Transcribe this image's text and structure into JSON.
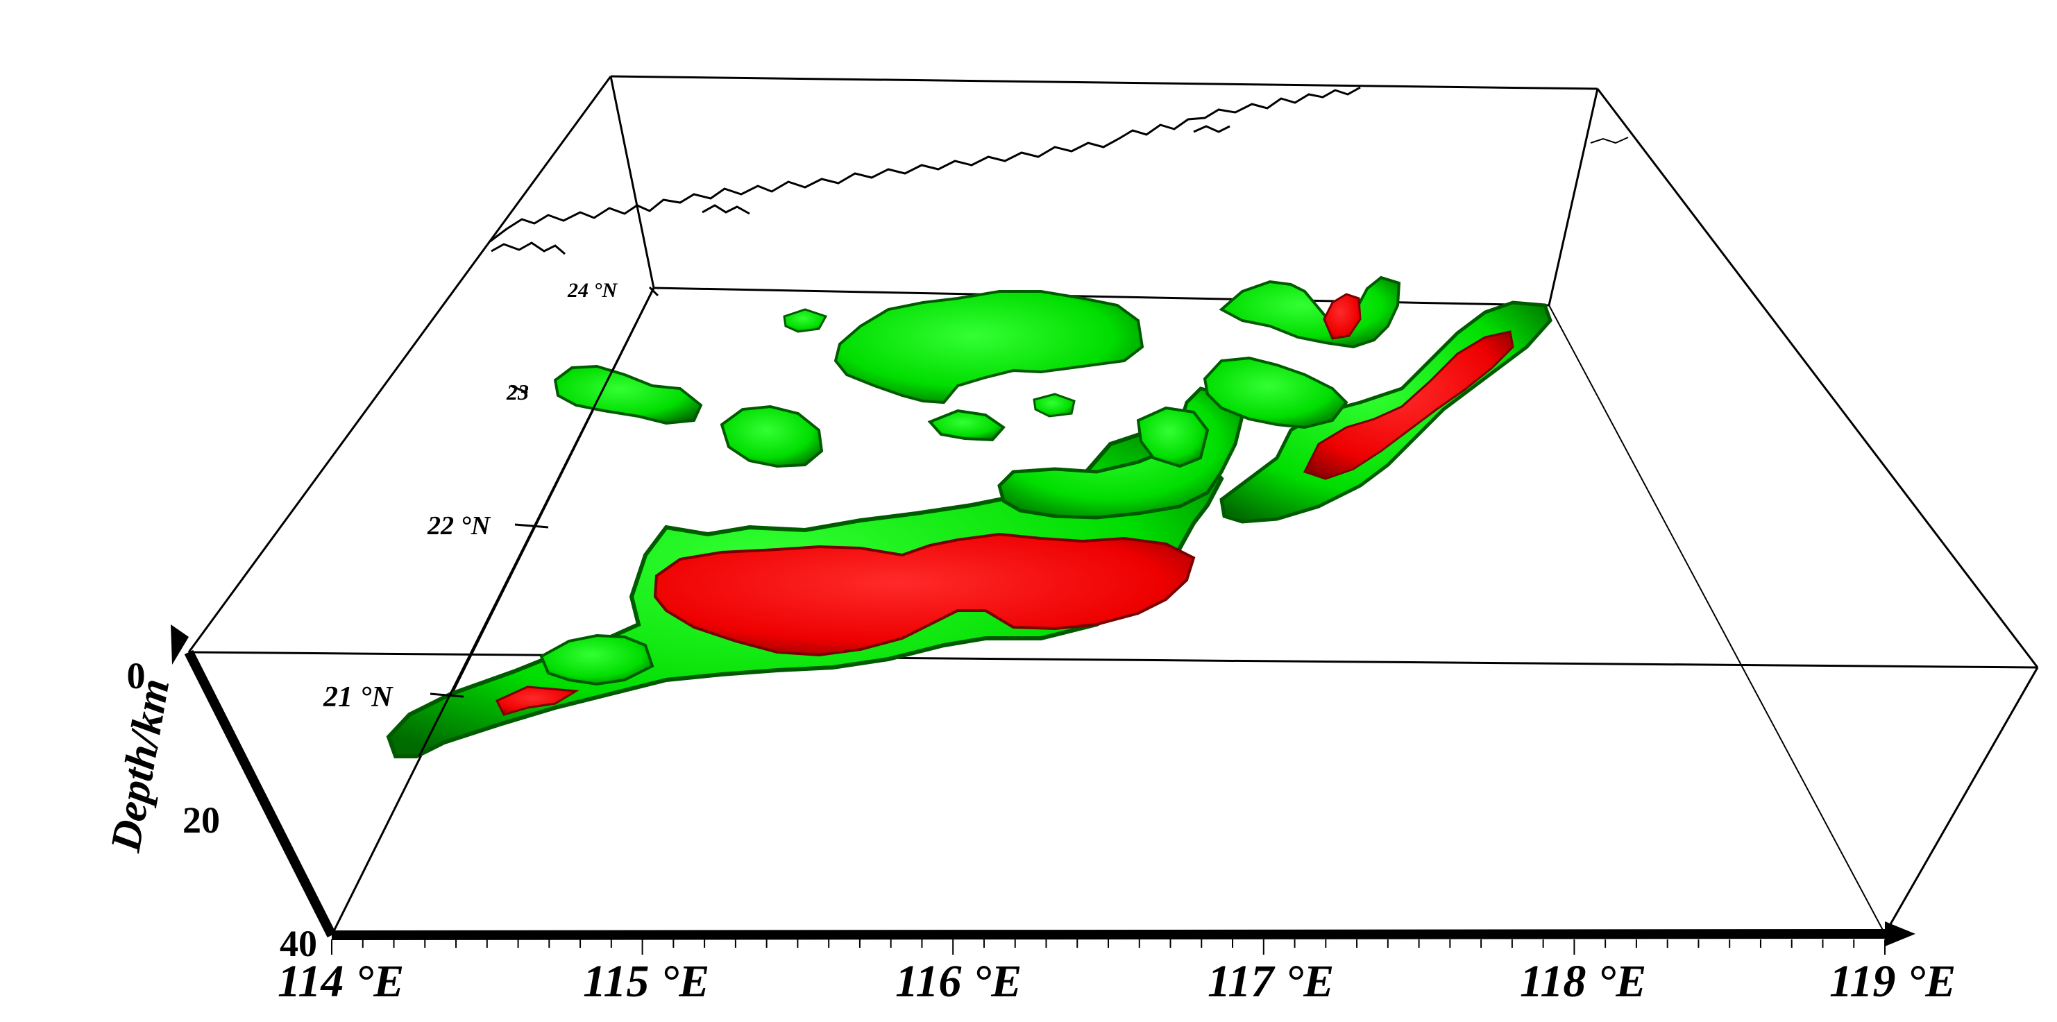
{
  "axes": {
    "depth_label": "Depth/km",
    "depth_ticks": [
      "0",
      "20",
      "40"
    ],
    "longitude_ticks": [
      "114 °E",
      "115 °E",
      "116 °E",
      "117 °E",
      "118 °E",
      "119 °E"
    ],
    "latitude_ticks": [
      "24 °N",
      "23",
      "22 °N",
      "21 °N"
    ]
  },
  "colors": {
    "outer_isosurface": "#00e600",
    "outer_isosurface_shade": "#008800",
    "inner_isosurface": "#ff1010",
    "inner_isosurface_shade": "#a00000",
    "frame": "#000000",
    "coastline": "#000000"
  }
}
